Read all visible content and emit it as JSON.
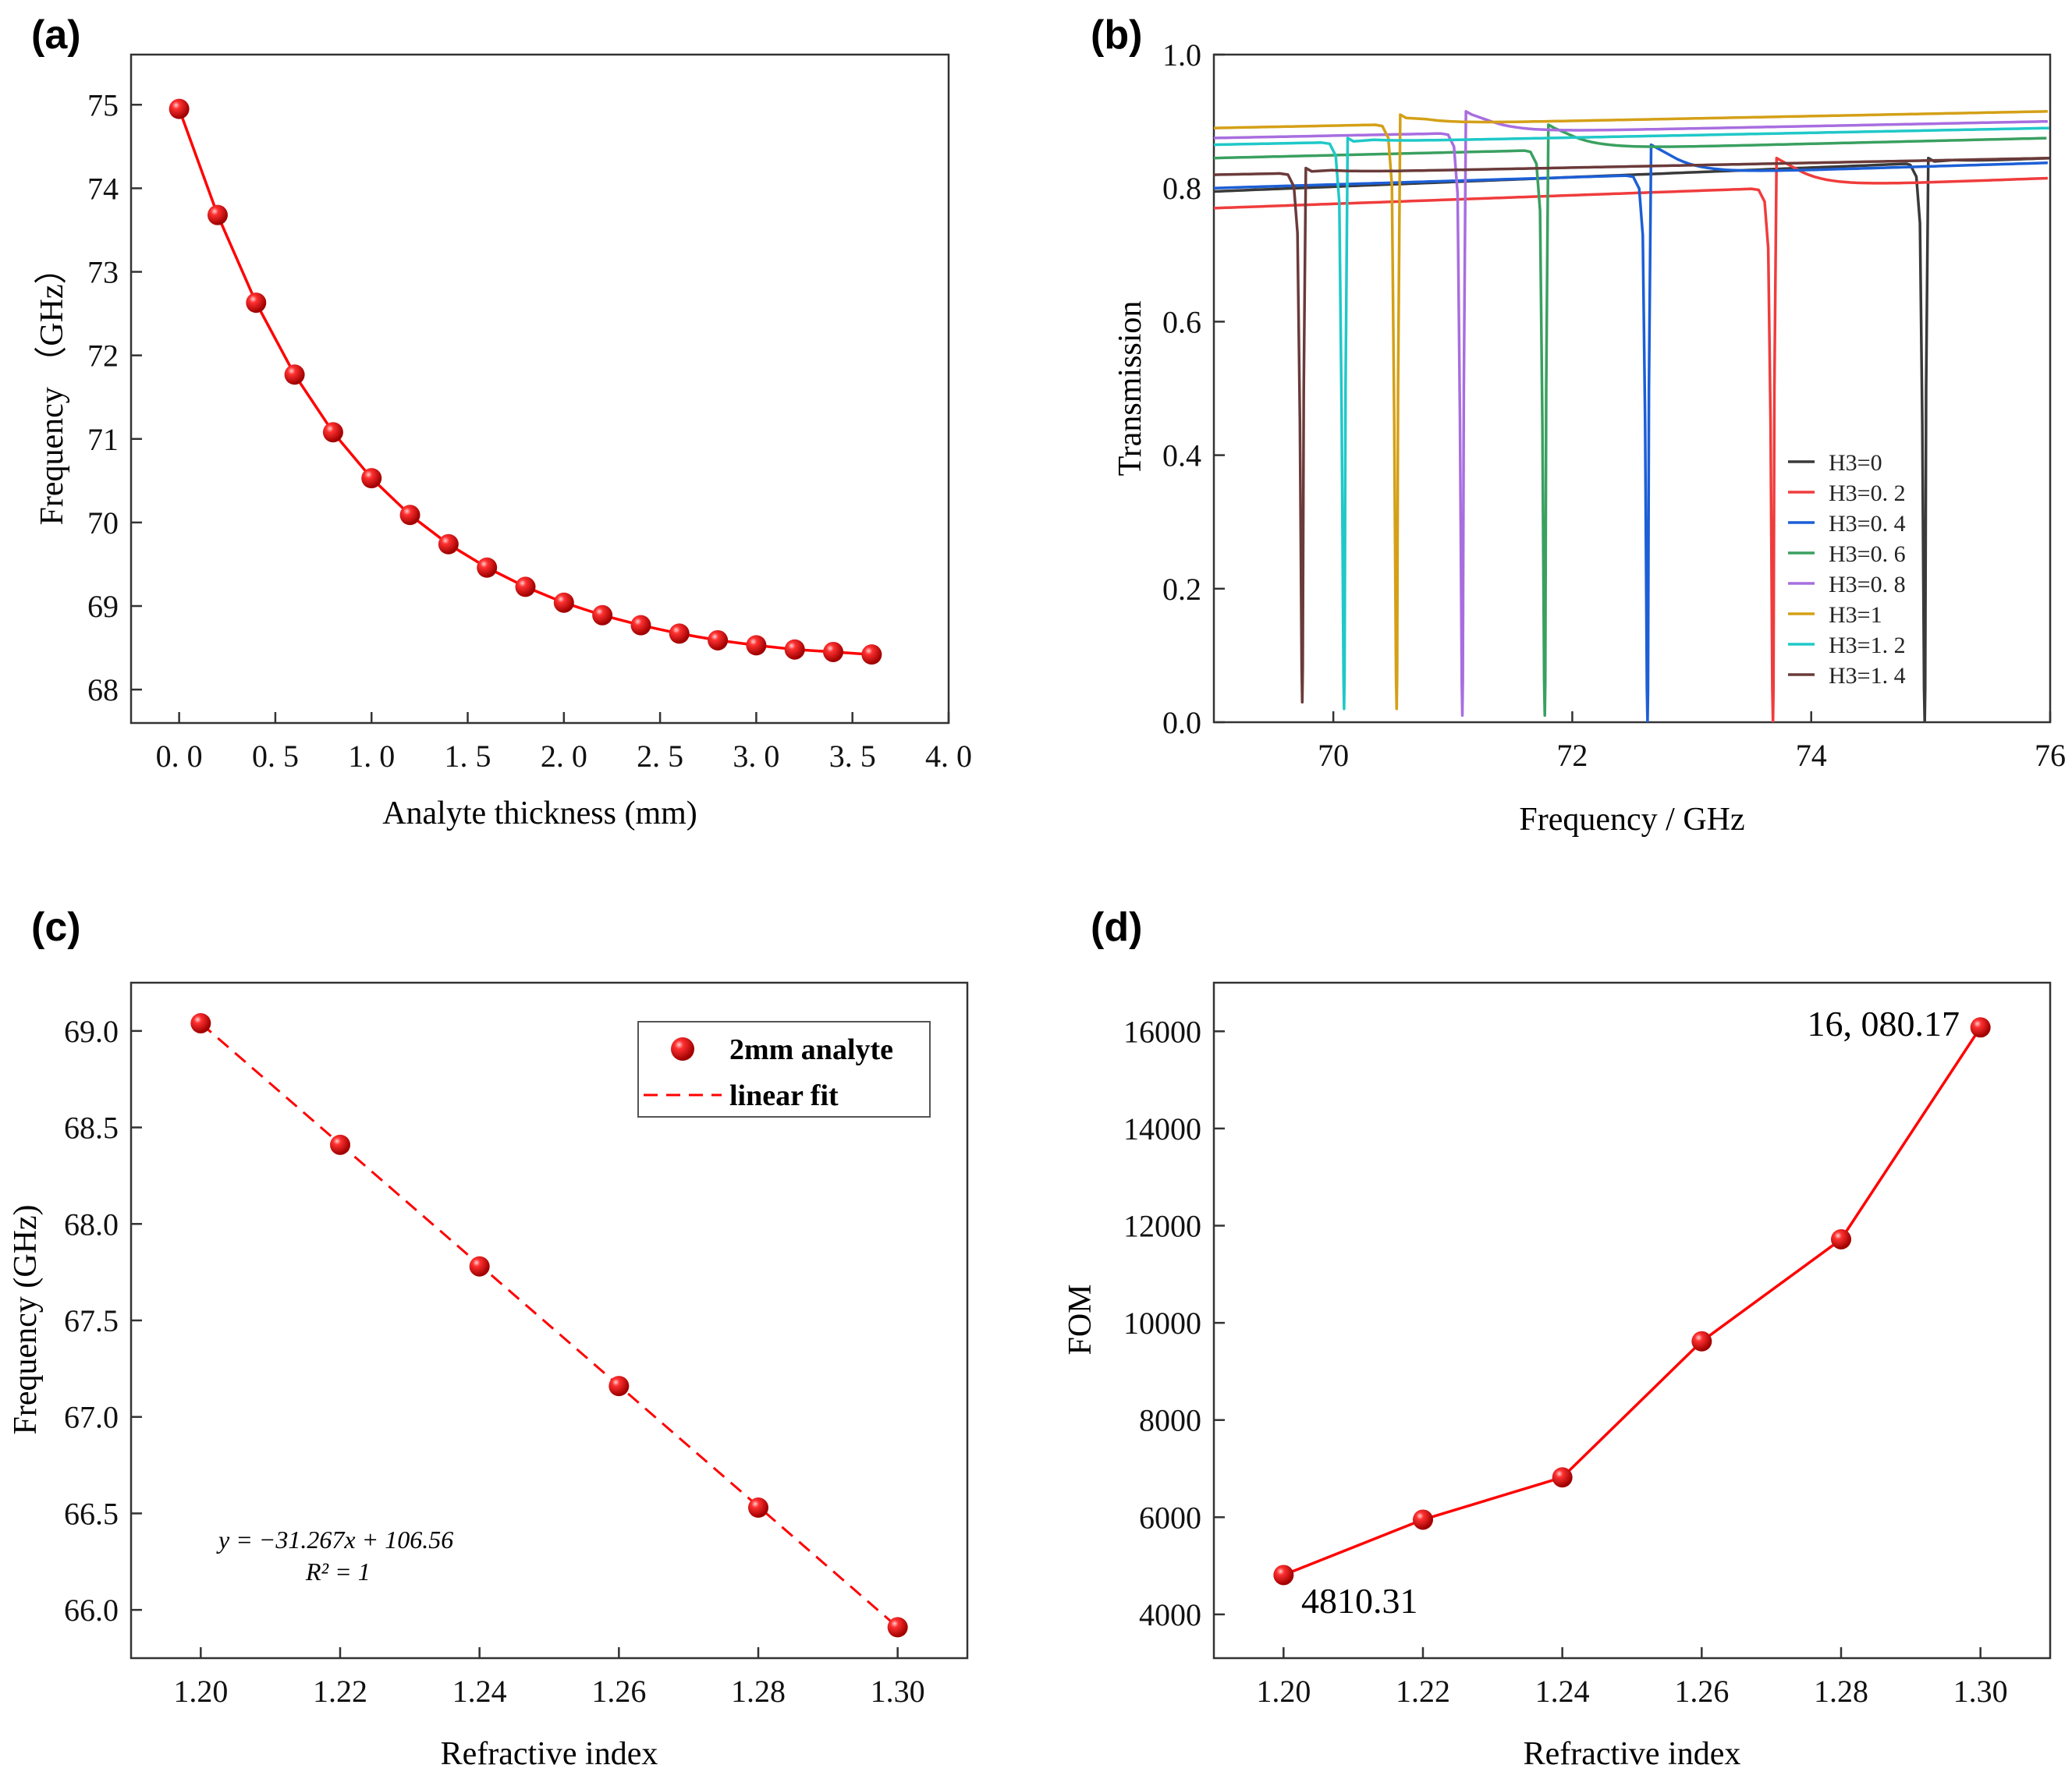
{
  "figure": {
    "panel_labels": [
      "(a)",
      "(b)",
      "(c)",
      "(d)"
    ]
  },
  "chart_data": [
    {
      "type": "line",
      "panel": "(a)",
      "title": "",
      "xlabel": "Analyte thickness (mm)",
      "ylabel": "Frequency （GHz）",
      "xlim": [
        -0.25,
        4.0
      ],
      "ylim": [
        67.6,
        75.6
      ],
      "xticks": [
        0.0,
        0.5,
        1.0,
        1.5,
        2.0,
        2.5,
        3.0,
        3.5,
        4.0
      ],
      "xtick_labels": [
        "0. 0",
        "0. 5",
        "1. 0",
        "1. 5",
        "2. 0",
        "2. 5",
        "3. 0",
        "3. 5",
        "4. 0"
      ],
      "yticks": [
        68,
        69,
        70,
        71,
        72,
        73,
        74,
        75
      ],
      "ytick_labels": [
        "68",
        "69",
        "70",
        "71",
        "72",
        "73",
        "74",
        "75"
      ],
      "grid": false,
      "series": [
        {
          "color": "#ff0000",
          "marker": "sphere",
          "x": [
            0.0,
            0.2,
            0.4,
            0.6,
            0.8,
            1.0,
            1.2,
            1.4,
            1.6,
            1.8,
            2.0,
            2.2,
            2.4,
            2.6,
            2.8,
            3.0,
            3.2,
            3.4,
            3.6
          ],
          "y": [
            74.95,
            73.68,
            72.63,
            71.77,
            71.08,
            70.53,
            70.09,
            69.74,
            69.46,
            69.23,
            69.04,
            68.89,
            68.77,
            68.67,
            68.59,
            68.53,
            68.48,
            68.45,
            68.42
          ]
        }
      ]
    },
    {
      "type": "line",
      "panel": "(b)",
      "title": "",
      "xlabel": "Frequency / GHz",
      "ylabel": "Transmission",
      "xlim": [
        69.0,
        76.0
      ],
      "ylim": [
        0.0,
        1.0
      ],
      "xticks": [
        70,
        72,
        74,
        76
      ],
      "xtick_labels": [
        "70",
        "72",
        "74",
        "76"
      ],
      "yticks": [
        0.0,
        0.2,
        0.4,
        0.6,
        0.8,
        1.0
      ],
      "ytick_labels": [
        "0.0",
        "0.2",
        "0.4",
        "0.6",
        "0.8",
        "1.0"
      ],
      "grid": false,
      "legend_position": "bottom-right",
      "series": [
        {
          "name": "H3=0",
          "color": "#3a3a3a",
          "resonance_dip": 74.95,
          "dip_minimum": 0.0,
          "baseline_at_69": 0.795,
          "baseline_at_76": 0.845,
          "peak_after_dip": 0.845
        },
        {
          "name": "H3=0. 2",
          "color": "#f03c3c",
          "resonance_dip": 73.68,
          "dip_minimum": 0.0,
          "baseline_at_69": 0.77,
          "baseline_at_76": 0.815,
          "peak_after_dip": 0.845
        },
        {
          "name": "H3=0. 4",
          "color": "#1c5fd6",
          "resonance_dip": 72.63,
          "dip_minimum": 0.0,
          "baseline_at_69": 0.8,
          "baseline_at_76": 0.838,
          "peak_after_dip": 0.865
        },
        {
          "name": "H3=0. 6",
          "color": "#3aa060",
          "resonance_dip": 71.77,
          "dip_minimum": 0.01,
          "baseline_at_69": 0.845,
          "baseline_at_76": 0.875,
          "peak_after_dip": 0.895
        },
        {
          "name": "H3=0. 8",
          "color": "#a86ee0",
          "resonance_dip": 71.08,
          "dip_minimum": 0.01,
          "baseline_at_69": 0.875,
          "baseline_at_76": 0.9,
          "peak_after_dip": 0.915
        },
        {
          "name": "H3=1",
          "color": "#d4a017",
          "resonance_dip": 70.53,
          "dip_minimum": 0.02,
          "baseline_at_69": 0.89,
          "baseline_at_76": 0.915,
          "peak_after_dip": 0.91
        },
        {
          "name": "H3=1. 2",
          "color": "#20c8c8",
          "resonance_dip": 70.09,
          "dip_minimum": 0.02,
          "baseline_at_69": 0.865,
          "baseline_at_76": 0.89,
          "peak_after_dip": 0.875
        },
        {
          "name": "H3=1. 4",
          "color": "#6b3a3a",
          "resonance_dip": 69.74,
          "dip_minimum": 0.03,
          "baseline_at_69": 0.82,
          "baseline_at_76": 0.845,
          "peak_after_dip": 0.83
        }
      ]
    },
    {
      "type": "scatter",
      "panel": "(c)",
      "title": "",
      "xlabel": "Refractive index",
      "ylabel": "Frequency (GHz)",
      "xlim": [
        1.19,
        1.31
      ],
      "ylim": [
        65.75,
        69.25
      ],
      "xticks": [
        1.2,
        1.22,
        1.24,
        1.26,
        1.28,
        1.3
      ],
      "xtick_labels": [
        "1.20",
        "1.22",
        "1.24",
        "1.26",
        "1.28",
        "1.30"
      ],
      "yticks": [
        66.0,
        66.5,
        67.0,
        67.5,
        68.0,
        68.5,
        69.0
      ],
      "ytick_labels": [
        "66.0",
        "66.5",
        "67.0",
        "67.5",
        "68.0",
        "68.5",
        "69.0"
      ],
      "grid": false,
      "legend_position": "top-right",
      "series": [
        {
          "name": "2mm analyte",
          "kind": "scatter",
          "color": "#ff0000",
          "x": [
            1.2,
            1.22,
            1.24,
            1.26,
            1.28,
            1.3
          ],
          "y": [
            69.04,
            68.41,
            67.78,
            67.16,
            66.53,
            65.91
          ]
        },
        {
          "name": "linear fit",
          "kind": "line",
          "style": "dashed",
          "color": "#ff0000",
          "x": [
            1.2,
            1.3
          ],
          "y": [
            69.04,
            65.91
          ]
        }
      ],
      "annotations": [
        {
          "text": "y = −31.267x + 106.56"
        },
        {
          "text": "R² = 1"
        }
      ]
    },
    {
      "type": "line",
      "panel": "(d)",
      "title": "",
      "xlabel": "Refractive index",
      "ylabel": "FOM",
      "xlim": [
        1.19,
        1.31
      ],
      "ylim": [
        3100,
        17000
      ],
      "xticks": [
        1.2,
        1.22,
        1.24,
        1.26,
        1.28,
        1.3
      ],
      "xtick_labels": [
        "1.20",
        "1.22",
        "1.24",
        "1.26",
        "1.28",
        "1.30"
      ],
      "yticks": [
        4000,
        6000,
        8000,
        10000,
        12000,
        14000,
        16000
      ],
      "ytick_labels": [
        "4000",
        "6000",
        "8000",
        "10000",
        "12000",
        "14000",
        "16000"
      ],
      "grid": false,
      "series": [
        {
          "color": "#ff0000",
          "marker": "sphere",
          "x": [
            1.2,
            1.22,
            1.24,
            1.26,
            1.28,
            1.3
          ],
          "y": [
            4810.31,
            5950,
            6820,
            9620,
            11720,
            16080.17
          ]
        }
      ],
      "annotations": [
        {
          "text": "4810.31"
        },
        {
          "text": "16, 080.17"
        }
      ]
    }
  ]
}
